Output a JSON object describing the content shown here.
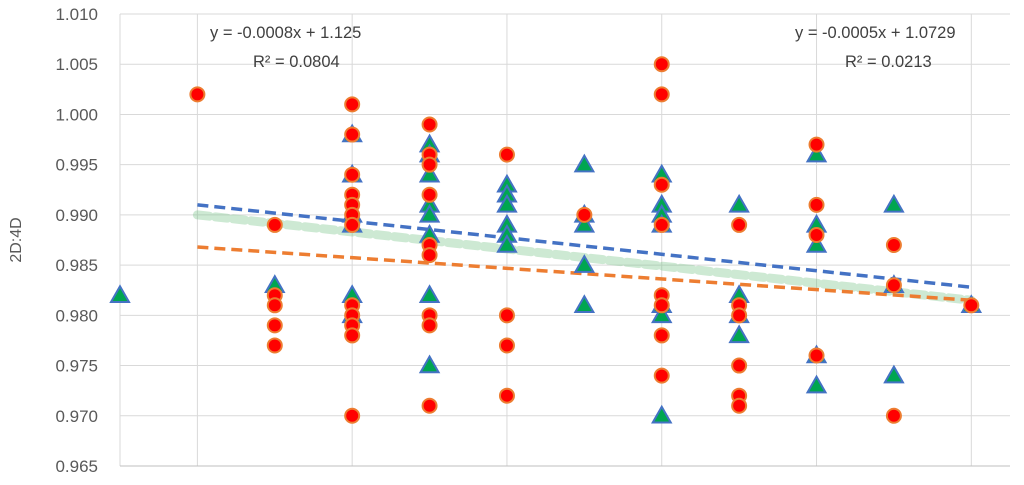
{
  "chart_data": {
    "type": "scatter",
    "ylabel": "2D:4D",
    "xlabel": "",
    "ylim": [
      0.965,
      1.01
    ],
    "xlim": [
      0,
      11.5
    ],
    "ytick_labels": [
      "0.965",
      "0.970",
      "0.975",
      "0.980",
      "0.985",
      "0.990",
      "0.995",
      "1.000",
      "1.005",
      "1.010"
    ],
    "yticks": [
      0.965,
      0.97,
      0.975,
      0.98,
      0.985,
      0.99,
      0.995,
      1.0,
      1.005,
      1.01
    ],
    "x_gridlines": [
      1,
      3,
      5,
      7,
      9,
      11
    ],
    "y_gridlines": true,
    "series": [
      {
        "marker": "circle",
        "color": "#ff0000",
        "edgecolor": "#ed7d31",
        "points": [
          [
            1,
            1.002
          ],
          [
            2,
            0.989
          ],
          [
            2,
            0.982
          ],
          [
            2,
            0.981
          ],
          [
            2,
            0.979
          ],
          [
            2,
            0.977
          ],
          [
            3,
            1.001
          ],
          [
            3,
            0.998
          ],
          [
            3,
            0.994
          ],
          [
            3,
            0.992
          ],
          [
            3,
            0.991
          ],
          [
            3,
            0.99
          ],
          [
            3,
            0.989
          ],
          [
            3,
            0.981
          ],
          [
            3,
            0.98
          ],
          [
            3,
            0.979
          ],
          [
            3,
            0.978
          ],
          [
            3,
            0.97
          ],
          [
            4,
            0.999
          ],
          [
            4,
            0.996
          ],
          [
            4,
            0.995
          ],
          [
            4,
            0.992
          ],
          [
            4,
            0.987
          ],
          [
            4,
            0.986
          ],
          [
            4,
            0.98
          ],
          [
            4,
            0.979
          ],
          [
            4,
            0.971
          ],
          [
            5,
            0.996
          ],
          [
            5,
            0.98
          ],
          [
            5,
            0.977
          ],
          [
            5,
            0.972
          ],
          [
            6,
            0.99
          ],
          [
            7,
            1.005
          ],
          [
            7,
            1.002
          ],
          [
            7,
            0.993
          ],
          [
            7,
            0.989
          ],
          [
            7,
            0.982
          ],
          [
            7,
            0.981
          ],
          [
            7,
            0.978
          ],
          [
            7,
            0.974
          ],
          [
            8,
            0.989
          ],
          [
            8,
            0.981
          ],
          [
            8,
            0.98
          ],
          [
            8,
            0.975
          ],
          [
            8,
            0.972
          ],
          [
            8,
            0.971
          ],
          [
            9,
            0.997
          ],
          [
            9,
            0.991
          ],
          [
            9,
            0.988
          ],
          [
            9,
            0.976
          ],
          [
            10,
            0.987
          ],
          [
            10,
            0.983
          ],
          [
            10,
            0.97
          ],
          [
            11,
            0.981
          ]
        ]
      },
      {
        "marker": "triangle",
        "color": "#00a650",
        "edgecolor": "#4472c4",
        "points": [
          [
            0,
            0.982
          ],
          [
            2,
            0.983
          ],
          [
            3,
            0.998
          ],
          [
            3,
            0.994
          ],
          [
            3,
            0.99
          ],
          [
            3,
            0.989
          ],
          [
            3,
            0.982
          ],
          [
            3,
            0.98
          ],
          [
            4,
            0.997
          ],
          [
            4,
            0.996
          ],
          [
            4,
            0.994
          ],
          [
            4,
            0.991
          ],
          [
            4,
            0.99
          ],
          [
            4,
            0.988
          ],
          [
            4,
            0.982
          ],
          [
            4,
            0.975
          ],
          [
            5,
            0.993
          ],
          [
            5,
            0.992
          ],
          [
            5,
            0.991
          ],
          [
            5,
            0.989
          ],
          [
            5,
            0.988
          ],
          [
            5,
            0.987
          ],
          [
            6,
            0.995
          ],
          [
            6,
            0.99
          ],
          [
            6,
            0.989
          ],
          [
            6,
            0.985
          ],
          [
            6,
            0.981
          ],
          [
            7,
            0.994
          ],
          [
            7,
            0.991
          ],
          [
            7,
            0.99
          ],
          [
            7,
            0.989
          ],
          [
            7,
            0.981
          ],
          [
            7,
            0.98
          ],
          [
            7,
            0.97
          ],
          [
            8,
            0.991
          ],
          [
            8,
            0.982
          ],
          [
            8,
            0.98
          ],
          [
            8,
            0.978
          ],
          [
            9,
            0.996
          ],
          [
            9,
            0.989
          ],
          [
            9,
            0.987
          ],
          [
            9,
            0.976
          ],
          [
            9,
            0.973
          ],
          [
            10,
            0.991
          ],
          [
            10,
            0.983
          ],
          [
            10,
            0.974
          ],
          [
            11,
            0.981
          ]
        ]
      }
    ],
    "trendlines": [
      {
        "label": "y = -0.0008x + 1.125",
        "r2_label": "R² = 0.0804",
        "color": "#4472c4",
        "style": "dashed",
        "x_range": [
          1,
          11
        ],
        "y_range": [
          0.991,
          0.9828
        ]
      },
      {
        "label": "y = -0.0005x + 1.0729",
        "r2_label": "R² = 0.0213",
        "color": "#ed7d31",
        "style": "dashed",
        "x_range": [
          1,
          11
        ],
        "y_range": [
          0.9868,
          0.9815
        ]
      },
      {
        "color": "#70c080",
        "style": "dotted-band",
        "x_range": [
          1,
          11
        ],
        "y_range": [
          0.99,
          0.9815
        ]
      }
    ]
  }
}
